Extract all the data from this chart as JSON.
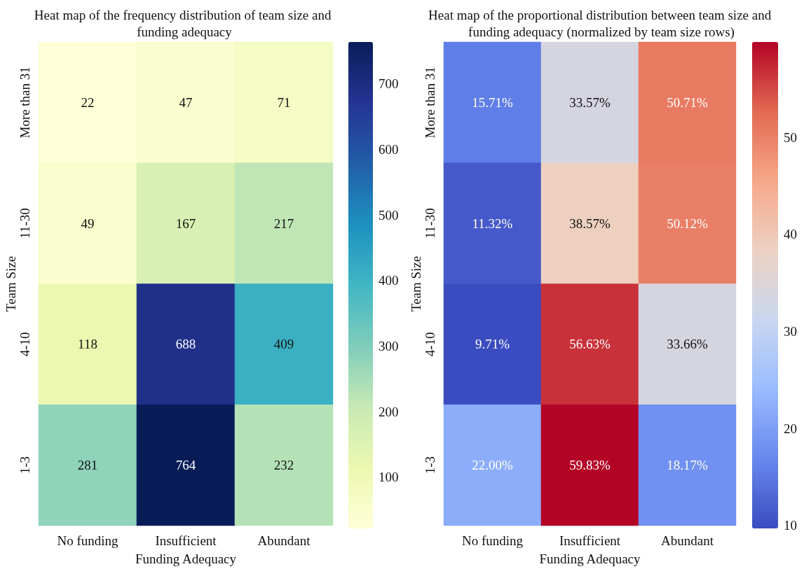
{
  "chart_data": [
    {
      "type": "heatmap",
      "title": "Heat map of the frequency distribution of team size and funding adequacy",
      "xlabel": "Funding Adequacy",
      "ylabel": "Team Size",
      "categories": [
        "No funding",
        "Insufficient",
        "Abundant"
      ],
      "y_categories": [
        "More than 31",
        "11-30",
        "4-10",
        "1-3"
      ],
      "cells": [
        [
          22,
          47,
          71
        ],
        [
          49,
          167,
          217
        ],
        [
          118,
          688,
          409
        ],
        [
          281,
          764,
          232
        ]
      ],
      "data_labels": true,
      "clim": [
        22,
        764
      ],
      "cticks": [
        100,
        200,
        300,
        400,
        500,
        600,
        700
      ]
    },
    {
      "type": "heatmap",
      "title": "Heat map of the proportional distribution between team size and funding adequacy (normalized by team size rows)",
      "xlabel": "Funding Adequacy",
      "ylabel": "Team Size",
      "categories": [
        "No funding",
        "Insufficient",
        "Abundant"
      ],
      "y_categories": [
        "More than 31",
        "11-30",
        "4-10",
        "1-3"
      ],
      "cells": [
        [
          15.71,
          33.57,
          50.71
        ],
        [
          11.32,
          38.57,
          50.12
        ],
        [
          9.71,
          56.63,
          33.66
        ],
        [
          22.0,
          59.83,
          18.17
        ]
      ],
      "cell_labels": [
        [
          "15.71%",
          "33.57%",
          "50.71%"
        ],
        [
          "11.32%",
          "38.57%",
          "50.12%"
        ],
        [
          "9.71%",
          "56.63%",
          "33.66%"
        ],
        [
          "22.00%",
          "59.83%",
          "18.17%"
        ]
      ],
      "clim": [
        9.71,
        59.83
      ],
      "cticks": [
        10,
        20,
        30,
        40,
        50
      ]
    }
  ]
}
